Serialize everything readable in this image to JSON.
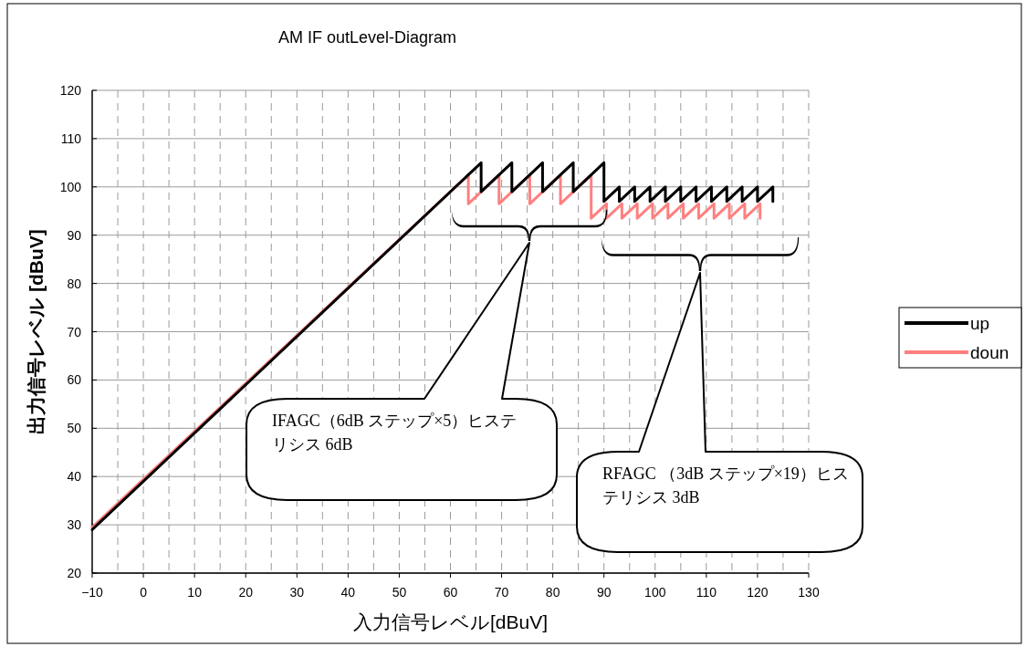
{
  "chart_data": {
    "type": "line",
    "title": "AM  IF outLevel-Diagram",
    "xlabel": "入力信号レベル[dBuV]",
    "ylabel": "出力信号レベル [dBuV]",
    "xlim": [
      -10,
      130
    ],
    "xticks": [
      -10,
      0,
      10,
      20,
      30,
      40,
      50,
      60,
      70,
      80,
      90,
      100,
      110,
      120,
      130
    ],
    "ylim": [
      20,
      120
    ],
    "yticks": [
      20,
      30,
      40,
      50,
      60,
      70,
      80,
      90,
      100,
      110,
      120
    ],
    "grid": true,
    "legend": "right",
    "line_style": "solid",
    "series": [
      {
        "name": "up",
        "color": "#000000",
        "x": [
          -10,
          66,
          66,
          72,
          72,
          78,
          78,
          84,
          84,
          90,
          90,
          93,
          93,
          96,
          96,
          99,
          99,
          102,
          102,
          105,
          105,
          108,
          108,
          111,
          111,
          114,
          114,
          117,
          117,
          120,
          120,
          123,
          123
        ],
        "values": [
          29,
          105,
          99,
          105,
          99,
          105,
          99,
          105,
          99,
          105,
          97,
          100,
          97,
          100,
          97,
          100,
          97,
          100,
          97,
          100,
          97,
          100,
          97,
          100,
          97,
          100,
          97,
          100,
          97,
          100,
          97,
          100,
          97
        ]
      },
      {
        "name": "doun",
        "color": "#ff8080",
        "x": [
          -10,
          63.5,
          63.5,
          69.5,
          69.5,
          75.5,
          75.5,
          81.5,
          81.5,
          87.5,
          87.5,
          90.5,
          90.5,
          93.5,
          93.5,
          96.5,
          96.5,
          99.5,
          99.5,
          102.5,
          102.5,
          105.5,
          105.5,
          108.5,
          108.5,
          111.5,
          111.5,
          114.5,
          114.5,
          117.5,
          117.5,
          120.5,
          120.5
        ],
        "values": [
          29.5,
          102.5,
          96.5,
          102.5,
          96.5,
          102.5,
          96.5,
          102.5,
          96.5,
          102.5,
          93.5,
          96.5,
          93.5,
          96.5,
          93.5,
          96.5,
          93.5,
          96.5,
          93.5,
          96.5,
          93.5,
          96.5,
          93.5,
          96.5,
          93.5,
          96.5,
          93.5,
          96.5,
          93.5,
          96.5,
          93.5,
          96.5,
          93.5
        ]
      }
    ],
    "annotations": [
      "IFAGC（6dB ステップ×5）ヒステリシス 6dB",
      "RFAGC （3dB ステップ×19）ヒステリシス 3dB"
    ]
  }
}
